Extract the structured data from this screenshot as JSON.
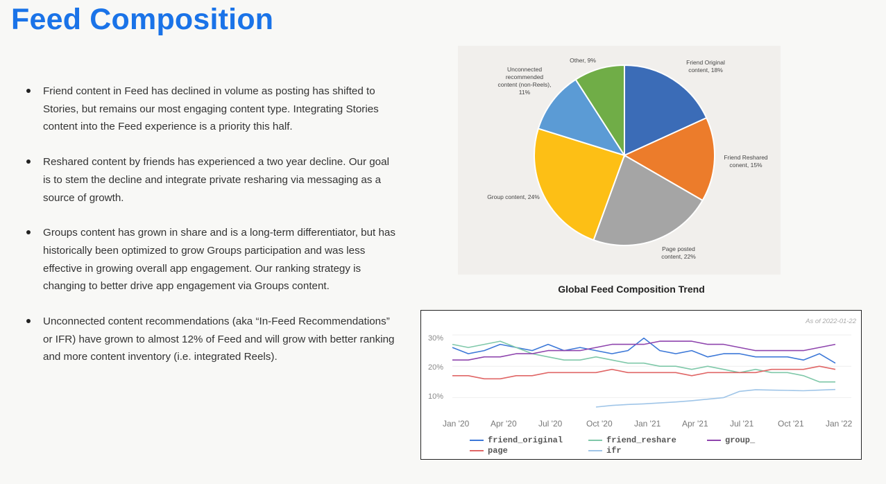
{
  "page": {
    "title": "Feed Composition",
    "bullets": [
      "Friend content in Feed has declined in volume as posting has shifted to Stories, but remains our most engaging content type. Integrating Stories content into the Feed experience is a priority this half.",
      "Reshared content by friends has experienced a two year decline. Our goal is to stem the decline and integrate private resharing via messaging as a source of growth.",
      "Groups content has grown in share and is a long-term differentiator, but has historically been optimized to grow Groups participation and was less effective in growing overall app engagement. Our ranking strategy is changing to better drive app engagement via Groups content.",
      "Unconnected content recommendations (aka “In-Feed Recommendations” or IFR) have grown to almost 12% of Feed and will grow with better ranking and more content inventory (i.e. integrated Reels)."
    ]
  },
  "chart_data": [
    {
      "type": "pie",
      "title": "",
      "slices": [
        {
          "label": "Friend Original content, 18%",
          "value": 18,
          "color": "#3b6cb7"
        },
        {
          "label": "Friend Reshared conent, 15%",
          "value": 15,
          "color": "#ec7c2b"
        },
        {
          "label": "Page posted content, 22%",
          "value": 22,
          "color": "#a5a5a5"
        },
        {
          "label": "Group content, 24%",
          "value": 24,
          "color": "#fdbf15"
        },
        {
          "label": "Unconnected recommended content (non-Reels), 11%",
          "value": 11,
          "color": "#5b9bd5"
        },
        {
          "label": "Other, 9%",
          "value": 9,
          "color": "#70ad47"
        }
      ]
    },
    {
      "type": "line",
      "title": "Global Feed Composition Trend",
      "annotation": "As of 2022-01-22",
      "ylim": [
        5,
        32
      ],
      "yticks": [
        "10%",
        "20%",
        "30%"
      ],
      "ytick_values": [
        10,
        20,
        30
      ],
      "xlim": [
        "2020-01",
        "2022-02"
      ],
      "xticks": [
        "Jan '20",
        "Apr '20",
        "Jul '20",
        "Oct '20",
        "Jan '21",
        "Apr '21",
        "Jul '21",
        "Oct '21",
        "Jan '22"
      ],
      "xtick_values": [
        "2020-01",
        "2020-04",
        "2020-07",
        "2020-10",
        "2021-01",
        "2021-04",
        "2021-07",
        "2021-10",
        "2022-01"
      ],
      "series": [
        {
          "name": "friend_original",
          "color": "#3c78d8",
          "x": [
            "2020-01",
            "2020-02",
            "2020-03",
            "2020-04",
            "2020-05",
            "2020-06",
            "2020-07",
            "2020-08",
            "2020-09",
            "2020-10",
            "2020-11",
            "2020-12",
            "2021-01",
            "2021-02",
            "2021-03",
            "2021-04",
            "2021-05",
            "2021-06",
            "2021-07",
            "2021-08",
            "2021-09",
            "2021-10",
            "2021-11",
            "2021-12",
            "2022-01"
          ],
          "y": [
            26,
            24,
            25,
            27,
            26,
            25,
            27,
            25,
            26,
            25,
            24,
            25,
            29,
            25,
            24,
            25,
            23,
            24,
            24,
            23,
            23,
            23,
            22,
            24,
            21
          ]
        },
        {
          "name": "friend_reshare",
          "color": "#7fc8a9",
          "x": [
            "2020-01",
            "2020-02",
            "2020-03",
            "2020-04",
            "2020-05",
            "2020-06",
            "2020-07",
            "2020-08",
            "2020-09",
            "2020-10",
            "2020-11",
            "2020-12",
            "2021-01",
            "2021-02",
            "2021-03",
            "2021-04",
            "2021-05",
            "2021-06",
            "2021-07",
            "2021-08",
            "2021-09",
            "2021-10",
            "2021-11",
            "2021-12",
            "2022-01"
          ],
          "y": [
            27,
            26,
            27,
            28,
            26,
            24,
            23,
            22,
            22,
            23,
            22,
            21,
            21,
            20,
            20,
            19,
            20,
            19,
            18,
            19,
            18,
            18,
            17,
            15,
            15
          ]
        },
        {
          "name": "group_",
          "color": "#8e44ad",
          "x": [
            "2020-01",
            "2020-02",
            "2020-03",
            "2020-04",
            "2020-05",
            "2020-06",
            "2020-07",
            "2020-08",
            "2020-09",
            "2020-10",
            "2020-11",
            "2020-12",
            "2021-01",
            "2021-02",
            "2021-03",
            "2021-04",
            "2021-05",
            "2021-06",
            "2021-07",
            "2021-08",
            "2021-09",
            "2021-10",
            "2021-11",
            "2021-12",
            "2022-01"
          ],
          "y": [
            22,
            22,
            23,
            23,
            24,
            24,
            25,
            25,
            25,
            26,
            27,
            27,
            27,
            28,
            28,
            28,
            27,
            27,
            26,
            25,
            25,
            25,
            25,
            26,
            27
          ]
        },
        {
          "name": "page",
          "color": "#e06666",
          "x": [
            "2020-01",
            "2020-02",
            "2020-03",
            "2020-04",
            "2020-05",
            "2020-06",
            "2020-07",
            "2020-08",
            "2020-09",
            "2020-10",
            "2020-11",
            "2020-12",
            "2021-01",
            "2021-02",
            "2021-03",
            "2021-04",
            "2021-05",
            "2021-06",
            "2021-07",
            "2021-08",
            "2021-09",
            "2021-10",
            "2021-11",
            "2021-12",
            "2022-01"
          ],
          "y": [
            17,
            17,
            16,
            16,
            17,
            17,
            18,
            18,
            18,
            18,
            19,
            18,
            18,
            18,
            18,
            17,
            18,
            18,
            18,
            18,
            19,
            19,
            19,
            20,
            19
          ]
        },
        {
          "name": "ifr",
          "color": "#9fc5e8",
          "x": [
            "2020-10",
            "2020-11",
            "2020-12",
            "2021-01",
            "2021-02",
            "2021-03",
            "2021-04",
            "2021-05",
            "2021-06",
            "2021-07",
            "2021-08",
            "2021-09",
            "2021-10",
            "2021-11",
            "2021-12",
            "2022-01"
          ],
          "y": [
            7,
            7.5,
            7.8,
            8,
            8.3,
            8.6,
            9,
            9.5,
            10,
            12,
            12.5,
            12.4,
            12.3,
            12.2,
            12.4,
            12.6
          ]
        }
      ]
    }
  ]
}
